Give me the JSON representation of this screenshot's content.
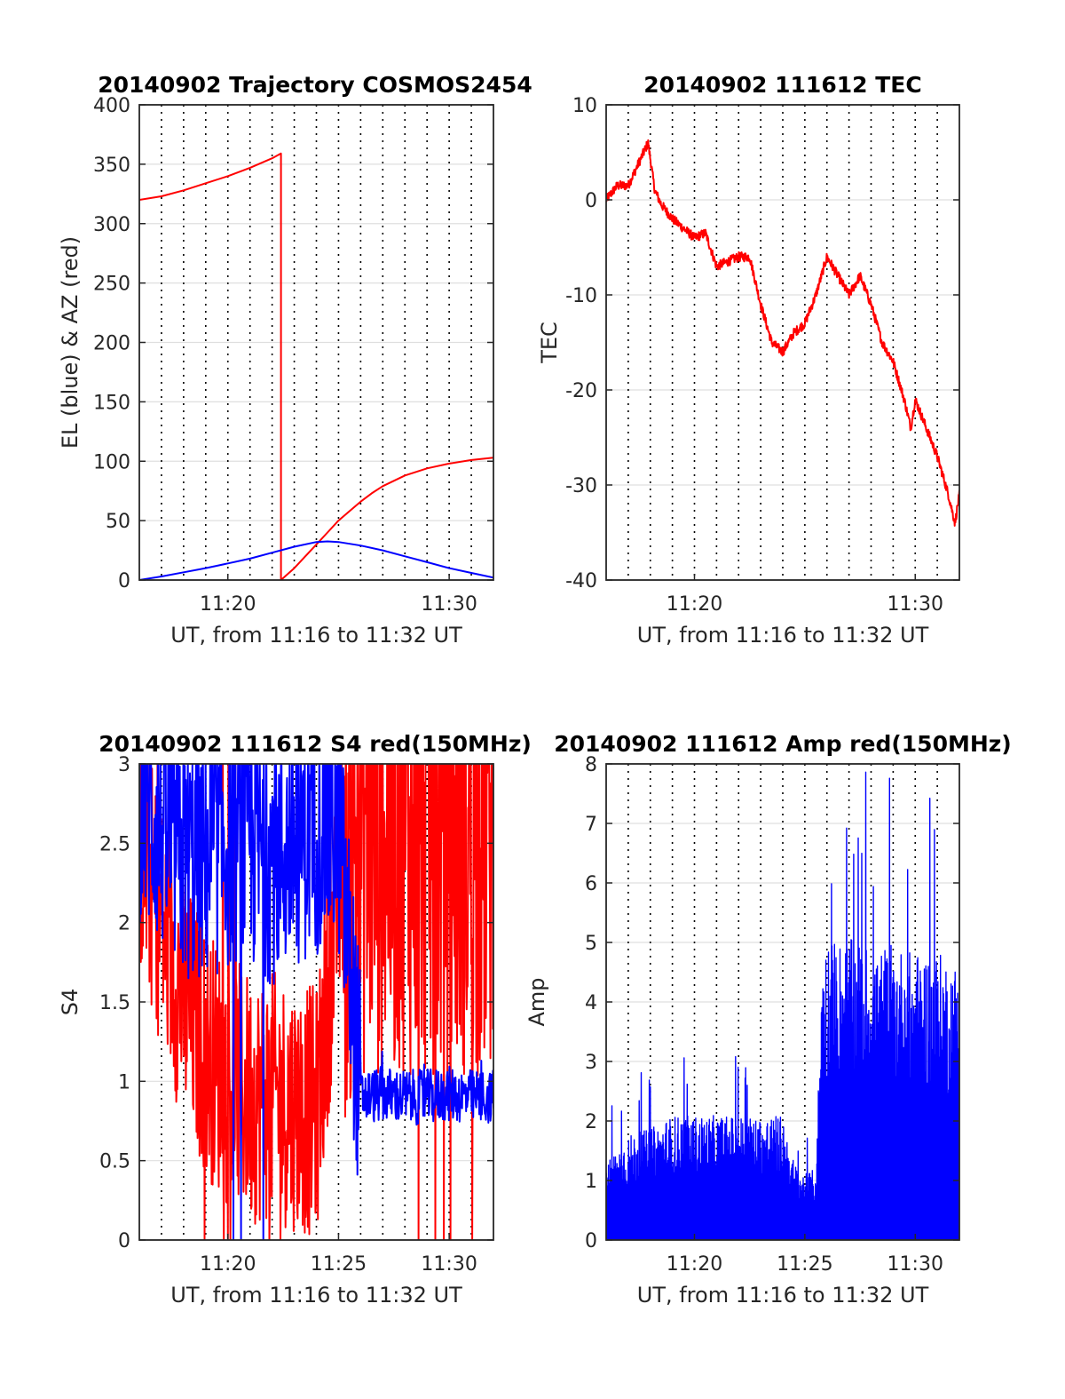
{
  "chart_data": [
    {
      "type": "line",
      "title": "20140902 Trajectory COSMOS2454",
      "xlabel": "UT, from 11:16 to 11:32 UT",
      "ylabel": "EL (blue) & AZ (red)",
      "xlim": [
        16,
        32
      ],
      "ylim": [
        0,
        400
      ],
      "xticks": [
        {
          "value": 20,
          "label": "11:20"
        },
        {
          "value": 30,
          "label": "11:30"
        }
      ],
      "yticks": [
        0,
        50,
        100,
        150,
        200,
        250,
        300,
        350,
        400
      ],
      "grid": true,
      "series": [
        {
          "color": "#ff0000",
          "x": [
            16,
            17,
            18,
            19,
            20,
            21,
            22,
            22.4,
            22.4,
            23,
            23.5,
            24,
            24.5,
            25,
            25.5,
            26,
            26.5,
            27,
            28,
            29,
            30,
            31,
            32
          ],
          "y": [
            320,
            323,
            328,
            334,
            340,
            347,
            355,
            359,
            0,
            10,
            20,
            30,
            40,
            50,
            58,
            66,
            73,
            79,
            88,
            94,
            98,
            101,
            103
          ]
        },
        {
          "color": "#0000ff",
          "x": [
            16,
            17,
            18,
            19,
            20,
            21,
            22,
            23,
            24,
            24.5,
            25,
            26,
            27,
            28,
            29,
            30,
            31,
            32
          ],
          "y": [
            0,
            3,
            6.5,
            10,
            14,
            18,
            23,
            28,
            32,
            32.5,
            32,
            29,
            25,
            20,
            15,
            10,
            6,
            2
          ]
        }
      ]
    },
    {
      "type": "line",
      "title": "20140902 111612 TEC",
      "xlabel": "UT, from 11:16 to 11:32 UT",
      "ylabel": "TEC",
      "xlim": [
        16,
        32
      ],
      "ylim": [
        -40,
        10
      ],
      "xticks": [
        {
          "value": 20,
          "label": "11:20"
        },
        {
          "value": 30,
          "label": "11:30"
        }
      ],
      "yticks": [
        -40,
        -30,
        -20,
        -10,
        0,
        10
      ],
      "grid": true,
      "series": [
        {
          "color": "#ff0000",
          "x": [
            16,
            16.5,
            17,
            17.5,
            17.9,
            18.2,
            18.5,
            19,
            19.5,
            20,
            20.5,
            21,
            21.5,
            22,
            22.5,
            23,
            23.5,
            24,
            24.5,
            25,
            25.5,
            26,
            26.5,
            27,
            27.5,
            28,
            28.5,
            29,
            29.5,
            29.8,
            30,
            30.5,
            31,
            31.5,
            31.8,
            32
          ],
          "y": [
            0,
            1.5,
            1.5,
            4,
            6,
            1,
            -0.5,
            -2,
            -3,
            -4,
            -3.5,
            -7,
            -6.5,
            -6,
            -6,
            -11,
            -15,
            -16,
            -14,
            -13,
            -10,
            -6,
            -8,
            -10,
            -8,
            -11,
            -15,
            -17,
            -21,
            -24,
            -21,
            -24,
            -27,
            -31,
            -34,
            -31
          ]
        }
      ]
    },
    {
      "type": "line",
      "title": "20140902 111612 S4 red(150MHz)",
      "xlabel": "UT, from 11:16 to 11:32 UT",
      "ylabel": "S4",
      "xlim": [
        16,
        32
      ],
      "ylim": [
        0,
        3
      ],
      "xticks": [
        {
          "value": 20,
          "label": "11:20"
        },
        {
          "value": 25,
          "label": "11:25"
        },
        {
          "value": 30,
          "label": "11:30"
        }
      ],
      "yticks": [
        0,
        0.5,
        1,
        1.5,
        2,
        2.5,
        3
      ],
      "grid": true,
      "series": [
        {
          "color": "#ff0000",
          "x": [
            16,
            17,
            18,
            19,
            20,
            21,
            22,
            23,
            24,
            25,
            26,
            27,
            28,
            29,
            30,
            31,
            32
          ],
          "y": [
            2.5,
            2.0,
            1.5,
            1.2,
            1.0,
            0.9,
            0.9,
            0.85,
            0.8,
            2.2,
            2.6,
            2.6,
            2.6,
            2.6,
            2.6,
            2.6,
            2.6
          ]
        },
        {
          "color": "#0000ff",
          "x": [
            16,
            17,
            18,
            19,
            20,
            21,
            22,
            23,
            24,
            25,
            26,
            27,
            28,
            29,
            30,
            31,
            32
          ],
          "y": [
            2.8,
            2.6,
            2.4,
            2.4,
            2.5,
            2.5,
            2.4,
            2.5,
            2.6,
            2.6,
            0.9,
            0.92,
            0.9,
            0.9,
            0.92,
            0.9,
            0.9
          ]
        }
      ]
    },
    {
      "type": "line",
      "title": "20140902 111612 Amp red(150MHz)",
      "xlabel": "UT, from 11:16 to 11:32 UT",
      "ylabel": "Amp",
      "xlim": [
        16,
        32
      ],
      "ylim": [
        0,
        8
      ],
      "xticks": [
        {
          "value": 20,
          "label": "11:20"
        },
        {
          "value": 25,
          "label": "11:25"
        },
        {
          "value": 30,
          "label": "11:30"
        }
      ],
      "yticks": [
        0,
        1,
        2,
        3,
        4,
        5,
        6,
        7,
        8
      ],
      "grid": true,
      "series": [
        {
          "color": "#0000ff",
          "x": [
            16,
            17,
            18,
            19,
            20,
            21,
            22,
            23,
            24,
            24.5,
            25,
            25.5,
            25.8,
            26,
            27,
            28,
            29,
            30,
            31,
            32
          ],
          "y": [
            1.2,
            1.6,
            1.7,
            1.9,
            1.9,
            1.9,
            1.9,
            1.9,
            1.9,
            1.2,
            1.0,
            1.1,
            4.5,
            4.6,
            4.6,
            4.5,
            4.5,
            4.4,
            4.4,
            4.2
          ]
        }
      ]
    }
  ]
}
